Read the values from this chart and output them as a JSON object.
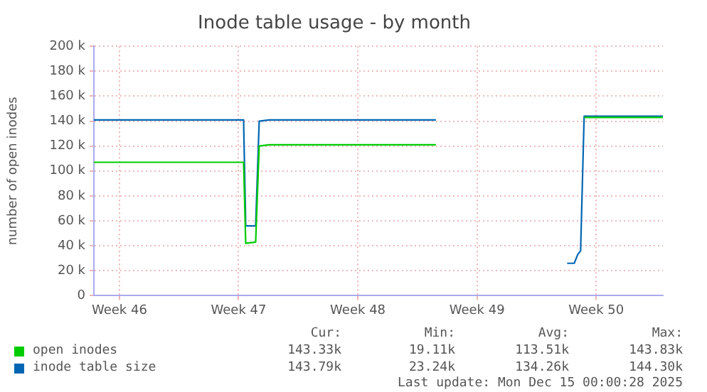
{
  "chart_data": {
    "type": "line",
    "title": "Inode table usage - by month",
    "ylabel": "number of open inodes",
    "xlim": [
      "2025-11-12T00:00",
      "2025-12-15T10:00"
    ],
    "xticks": [
      {
        "value": "2025-11-13T12:00",
        "label": "Week 46"
      },
      {
        "value": "2025-11-20T12:00",
        "label": "Week 47"
      },
      {
        "value": "2025-11-27T12:00",
        "label": "Week 48"
      },
      {
        "value": "2025-12-04T12:00",
        "label": "Week 49"
      },
      {
        "value": "2025-12-11T12:00",
        "label": "Week 50"
      }
    ],
    "ylim": [
      0,
      200000
    ],
    "yticks": [
      0,
      {
        "value": 20000,
        "label": "20 k"
      },
      {
        "value": 40000,
        "label": "40 k"
      },
      {
        "value": 60000,
        "label": "60 k"
      },
      {
        "value": 80000,
        "label": "80 k"
      },
      {
        "value": 100000,
        "label": "100 k"
      },
      {
        "value": 120000,
        "label": "120 k"
      },
      {
        "value": 140000,
        "label": "140 k"
      },
      {
        "value": 160000,
        "label": "160 k"
      },
      {
        "value": 180000,
        "label": "180 k"
      },
      {
        "value": 200000,
        "label": "200 k"
      }
    ],
    "series": [
      {
        "name": "open inodes",
        "color": "#00cc00",
        "x": [
          "2025-11-12T00:00",
          "2025-11-20T19:00",
          "2025-11-20T22:00",
          "2025-11-21T12:00",
          "2025-11-21T17:00",
          "2025-11-22T07:00",
          "2025-12-02T02:00",
          "2025-12-02T05:00",
          "2025-12-10T19:00",
          "2025-12-15T10:00"
        ],
        "values": [
          107000,
          107000,
          42000,
          43000,
          120000,
          121000,
          121000,
          null,
          143000,
          143000
        ]
      },
      {
        "name": "inode table size",
        "color": "#0066b3",
        "x": [
          "2025-11-12T00:00",
          "2025-11-20T19:00",
          "2025-11-20T22:00",
          "2025-11-21T12:00",
          "2025-11-21T17:00",
          "2025-11-22T07:00",
          "2025-12-02T02:00",
          "2025-12-02T05:00",
          "2025-12-09T19:00",
          "2025-12-10T05:00",
          "2025-12-10T10:00",
          "2025-12-10T14:00",
          "2025-12-10T19:00",
          "2025-12-15T10:00"
        ],
        "values": [
          141000,
          141000,
          56000,
          56000,
          140000,
          141000,
          141000,
          null,
          26000,
          26000,
          33000,
          36000,
          144000,
          144000
        ]
      }
    ],
    "grid": true,
    "legend": "bottom",
    "marker": "none",
    "line_style": "solid",
    "annotations": [
      "Cur:",
      "Min:",
      "Avg:",
      "Max:",
      "143.33k",
      "19.11k",
      "113.51k",
      "143.83k",
      "143.79k",
      "23.24k",
      "134.26k",
      "144.30k",
      "Last update: Mon Dec 15 00:00:28 2025"
    ]
  }
}
